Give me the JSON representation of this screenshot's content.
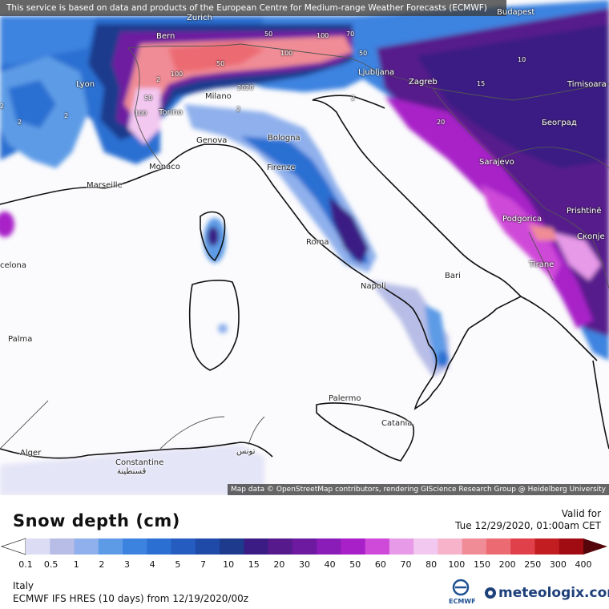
{
  "notice": "This service is based on data and products of the European Centre for Medium-range Weather Forecasts (ECMWF)",
  "attribution": "Map data © OpenStreetMap contributors, rendering GIScience Research Group @ Heidelberg University",
  "title": "Snow depth (cm)",
  "valid_label": "Valid for",
  "valid_time": "Tue 12/29/2020, 01:00am CET",
  "region": "Italy",
  "model": "ECMWF IFS HRES (10 days) from 12/19/2020/00z",
  "ecmwf_label": "ECMWF",
  "brand": "meteologix.com",
  "legend": {
    "ticks": [
      "0.1",
      "0.5",
      "1",
      "2",
      "3",
      "4",
      "5",
      "7",
      "10",
      "15",
      "20",
      "30",
      "40",
      "50",
      "60",
      "70",
      "80",
      "100",
      "150",
      "200",
      "250",
      "300",
      "400"
    ],
    "colors": [
      "#dcdcf5",
      "#b7bde6",
      "#8fb0ec",
      "#5d9be6",
      "#3c83e0",
      "#2b6fd2",
      "#245cc0",
      "#1f4aa8",
      "#1d3a8c",
      "#3b1c84",
      "#561a8c",
      "#6e1aa0",
      "#8a1cb8",
      "#a820c8",
      "#cf4ad8",
      "#e79ae8",
      "#f3c8f0",
      "#f6b3c9",
      "#f08c95",
      "#ec6a72",
      "#e0404a",
      "#c21e22",
      "#a10c12",
      "#800a0e",
      "#55060a"
    ]
  },
  "cities": [
    {
      "name": "Bern",
      "light": true
    },
    {
      "name": "Zurich",
      "light": true
    },
    {
      "name": "Budapest",
      "light": true
    },
    {
      "name": "Lyon",
      "light": true
    },
    {
      "name": "Milano",
      "light": false
    },
    {
      "name": "Ljubljana",
      "light": true
    },
    {
      "name": "Zagreb",
      "light": true
    },
    {
      "name": "Timisoara",
      "light": true
    },
    {
      "name": "Torino",
      "light": true
    },
    {
      "name": "Београд",
      "light": true
    },
    {
      "name": "Genova",
      "light": false
    },
    {
      "name": "Bologna",
      "light": false
    },
    {
      "name": "Monaco",
      "light": false
    },
    {
      "name": "Firenze",
      "light": false
    },
    {
      "name": "Sarajevo",
      "light": true
    },
    {
      "name": "Marseille",
      "light": false
    },
    {
      "name": "Podgorica",
      "light": true
    },
    {
      "name": "Prishtinë",
      "light": true
    },
    {
      "name": "Скопје",
      "light": true
    },
    {
      "name": "Roma",
      "light": false
    },
    {
      "name": "Tirane",
      "light": true
    },
    {
      "name": "celona",
      "light": false
    },
    {
      "name": "Bari",
      "light": false
    },
    {
      "name": "Napoli",
      "light": false
    },
    {
      "name": "Palma",
      "light": false
    },
    {
      "name": "Palermo",
      "light": false
    },
    {
      "name": "Catania",
      "light": false
    },
    {
      "name": "Alger",
      "light": false
    },
    {
      "name": "Constantine",
      "light": false
    },
    {
      "name": "قسنطينة",
      "light": false
    },
    {
      "name": "تونس",
      "light": false
    }
  ],
  "contour_labels": [
    "50",
    "100",
    "70",
    "50",
    "50",
    "100",
    "100",
    "2020",
    "2",
    "100",
    "50",
    "10",
    "15",
    "20",
    "2",
    "2",
    "2",
    "2",
    "2"
  ]
}
